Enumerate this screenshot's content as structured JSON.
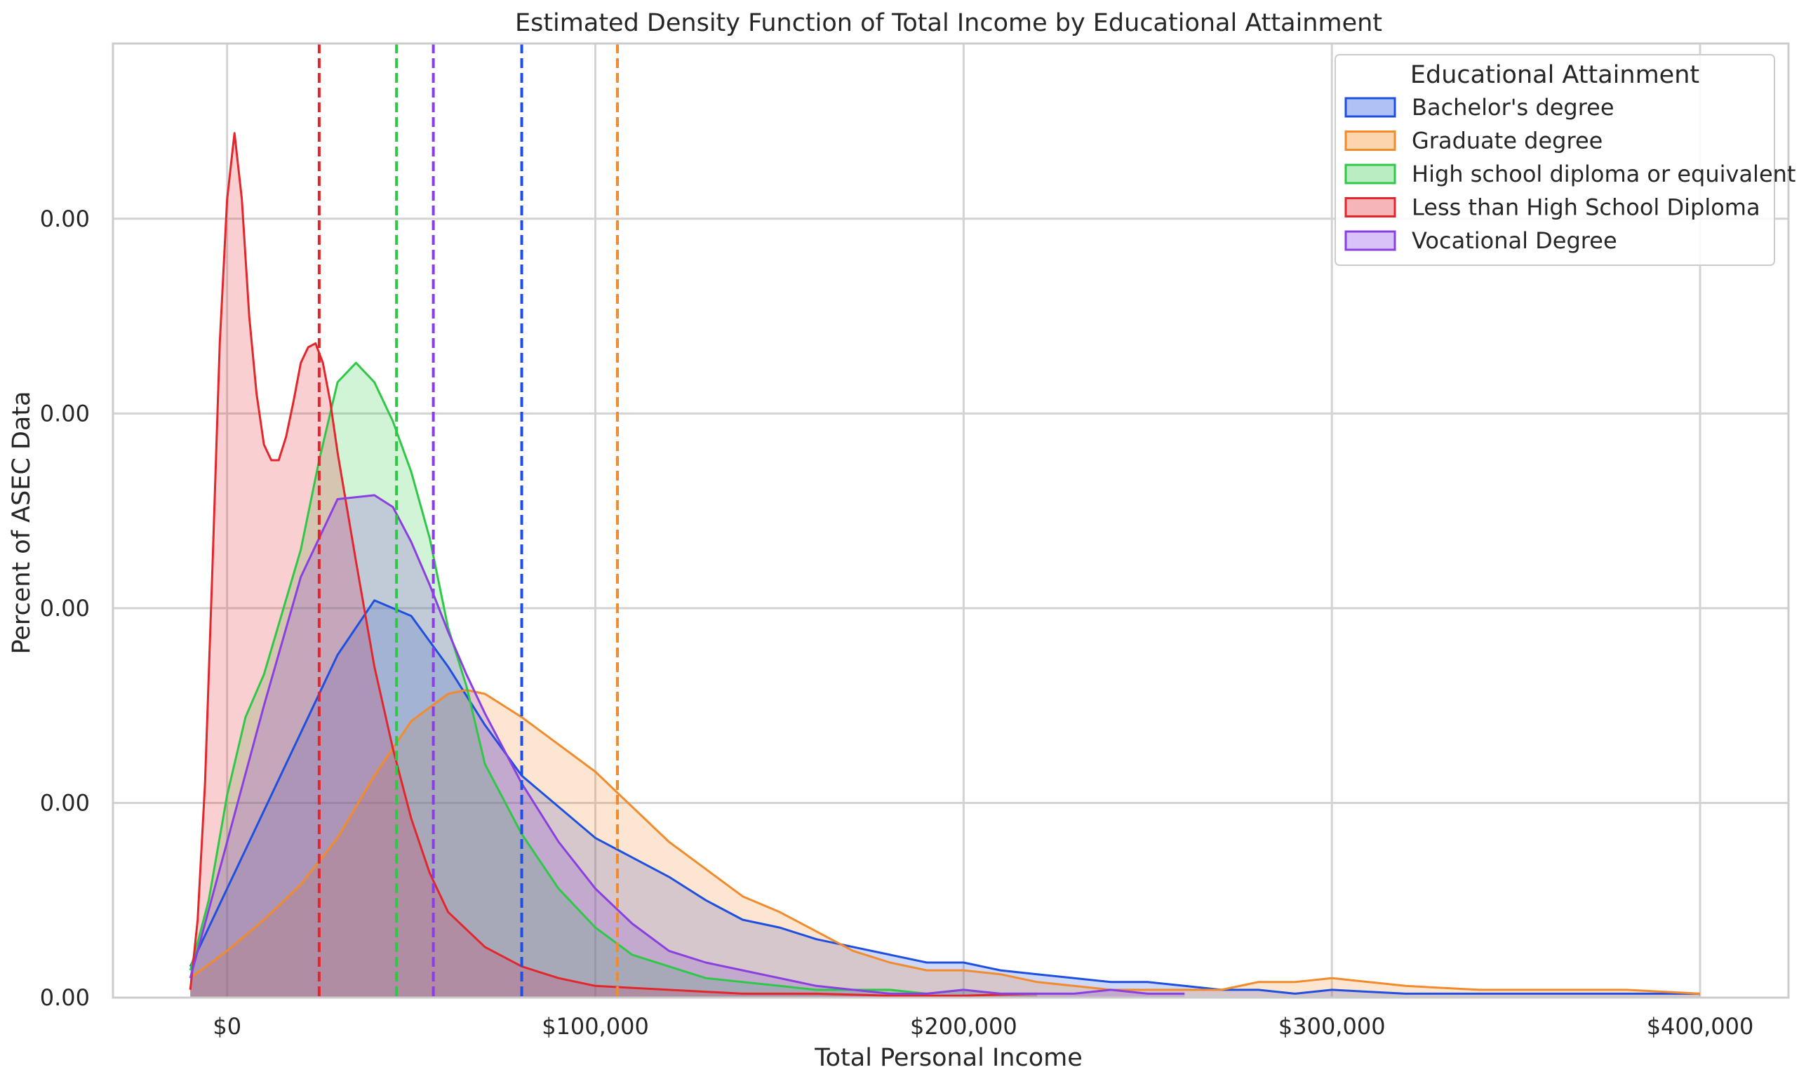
{
  "chart_data": {
    "type": "area",
    "title": "Estimated Density Function of Total Income by Educational Attainment",
    "xlabel": "Total Personal Income",
    "ylabel": "Percent of ASEC Data",
    "xlim": [
      -31000,
      424000
    ],
    "ylim": [
      0,
      2.45e-05
    ],
    "xticks": [
      {
        "value": 0,
        "label": "$0"
      },
      {
        "value": 100000,
        "label": "$100,000"
      },
      {
        "value": 200000,
        "label": "$200,000"
      },
      {
        "value": 300000,
        "label": "$300,000"
      },
      {
        "value": 400000,
        "label": "$400,000"
      }
    ],
    "yticks": [
      {
        "value": 0,
        "label": "0.00"
      },
      {
        "value": 5e-06,
        "label": "0.00"
      },
      {
        "value": 1e-05,
        "label": "0.00"
      },
      {
        "value": 1.5e-05,
        "label": "0.00"
      },
      {
        "value": 2e-05,
        "label": "0.00"
      }
    ],
    "grid": true,
    "legend": {
      "title": "Educational Attainment",
      "position": "top-right"
    },
    "series": [
      {
        "name": "Bachelor's degree",
        "color": "#1f4fe0",
        "fill": "#aec2f5",
        "median": 80000,
        "x": [
          -10000,
          -5000,
          0,
          10000,
          20000,
          30000,
          40000,
          50000,
          60000,
          70000,
          80000,
          90000,
          100000,
          110000,
          120000,
          130000,
          140000,
          150000,
          160000,
          170000,
          180000,
          190000,
          200000,
          210000,
          220000,
          230000,
          240000,
          250000,
          260000,
          270000,
          280000,
          290000,
          300000,
          320000,
          340000,
          360000,
          380000,
          400000
        ],
        "y": [
          8e-07,
          1.8e-06,
          2.8e-06,
          4.8e-06,
          6.8e-06,
          8.8e-06,
          1.02e-05,
          9.8e-06,
          8.5e-06,
          7e-06,
          5.7e-06,
          4.9e-06,
          4.1e-06,
          3.6e-06,
          3.1e-06,
          2.5e-06,
          2e-06,
          1.8e-06,
          1.5e-06,
          1.3e-06,
          1.1e-06,
          9e-07,
          9e-07,
          7e-07,
          6e-07,
          5e-07,
          4e-07,
          4e-07,
          3e-07,
          2e-07,
          2e-07,
          1e-07,
          2e-07,
          1e-07,
          1e-07,
          1e-07,
          1e-07,
          1e-07
        ]
      },
      {
        "name": "Graduate degree",
        "color": "#f28b2c",
        "fill": "#fbd5ad",
        "median": 106000,
        "x": [
          -10000,
          0,
          10000,
          20000,
          30000,
          40000,
          50000,
          60000,
          65000,
          70000,
          80000,
          90000,
          100000,
          110000,
          120000,
          130000,
          140000,
          150000,
          160000,
          170000,
          180000,
          190000,
          200000,
          210000,
          220000,
          230000,
          240000,
          250000,
          260000,
          270000,
          280000,
          290000,
          300000,
          310000,
          320000,
          340000,
          360000,
          380000,
          400000
        ],
        "y": [
          5e-07,
          1.2e-06,
          2e-06,
          2.9e-06,
          4.1e-06,
          5.7e-06,
          7.1e-06,
          7.8e-06,
          7.9e-06,
          7.8e-06,
          7.2e-06,
          6.5e-06,
          5.8e-06,
          4.9e-06,
          4e-06,
          3.3e-06,
          2.6e-06,
          2.2e-06,
          1.7e-06,
          1.2e-06,
          9e-07,
          7e-07,
          7e-07,
          6e-07,
          4e-07,
          3e-07,
          2e-07,
          2e-07,
          2e-07,
          2e-07,
          4e-07,
          4e-07,
          5e-07,
          4e-07,
          3e-07,
          2e-07,
          2e-07,
          2e-07,
          1e-07
        ]
      },
      {
        "name": "High school diploma or equivalent",
        "color": "#2ec846",
        "fill": "#b9eec3",
        "median": 46000,
        "x": [
          -10000,
          -5000,
          0,
          5000,
          10000,
          20000,
          25000,
          30000,
          35000,
          40000,
          45000,
          50000,
          55000,
          60000,
          65000,
          70000,
          80000,
          90000,
          100000,
          110000,
          120000,
          130000,
          140000,
          150000,
          160000,
          170000,
          180000,
          190000,
          200000,
          210000,
          220000
        ],
        "y": [
          7e-07,
          2.5e-06,
          5.2e-06,
          7.2e-06,
          8.3e-06,
          1.15e-05,
          1.38e-05,
          1.58e-05,
          1.63e-05,
          1.58e-05,
          1.48e-05,
          1.35e-05,
          1.18e-05,
          9.5e-06,
          8e-06,
          6e-06,
          4.2e-06,
          2.8e-06,
          1.8e-06,
          1.1e-06,
          8e-07,
          5e-07,
          4e-07,
          3e-07,
          2e-07,
          2e-07,
          2e-07,
          1e-07,
          2e-07,
          1e-07,
          1e-07
        ]
      },
      {
        "name": "Less than High School Diploma",
        "color": "#e3262c",
        "fill": "#f6b6b9",
        "median": 25000,
        "x": [
          -10000,
          -8000,
          -6000,
          -4000,
          -2000,
          0,
          2000,
          4000,
          6000,
          8000,
          10000,
          12000,
          14000,
          16000,
          18000,
          20000,
          22000,
          24000,
          26000,
          28000,
          30000,
          35000,
          40000,
          45000,
          50000,
          55000,
          60000,
          70000,
          80000,
          90000,
          100000,
          120000,
          140000,
          160000,
          180000,
          200000,
          220000
        ],
        "y": [
          2e-07,
          2e-06,
          5.5e-06,
          1.1e-05,
          1.68e-05,
          2.05e-05,
          2.22e-05,
          2.05e-05,
          1.75e-05,
          1.55e-05,
          1.42e-05,
          1.38e-05,
          1.38e-05,
          1.44e-05,
          1.53e-05,
          1.63e-05,
          1.67e-05,
          1.68e-05,
          1.63e-05,
          1.53e-05,
          1.4e-05,
          1.12e-05,
          8.5e-06,
          6.4e-06,
          4.6e-06,
          3.2e-06,
          2.2e-06,
          1.3e-06,
          8e-07,
          5e-07,
          3e-07,
          2e-07,
          1e-07,
          1e-07,
          5e-08,
          5e-08,
          1e-07
        ]
      },
      {
        "name": "Vocational Degree",
        "color": "#8a3fe0",
        "fill": "#d9c2f5",
        "median": 56000,
        "x": [
          -10000,
          0,
          10000,
          20000,
          30000,
          40000,
          45000,
          50000,
          55000,
          60000,
          65000,
          70000,
          80000,
          90000,
          100000,
          110000,
          120000,
          130000,
          140000,
          150000,
          160000,
          170000,
          180000,
          190000,
          200000,
          210000,
          220000,
          230000,
          240000,
          250000,
          260000
        ],
        "y": [
          5e-07,
          4e-06,
          7.5e-06,
          1.08e-05,
          1.28e-05,
          1.29e-05,
          1.26e-05,
          1.17e-05,
          1.06e-05,
          9.4e-06,
          8.3e-06,
          7.3e-06,
          5.5e-06,
          4e-06,
          2.8e-06,
          1.9e-06,
          1.2e-06,
          9e-07,
          7e-07,
          5e-07,
          3e-07,
          2e-07,
          1e-07,
          1e-07,
          2e-07,
          1e-07,
          1e-07,
          1e-07,
          2e-07,
          1e-07,
          1e-07
        ]
      }
    ]
  }
}
